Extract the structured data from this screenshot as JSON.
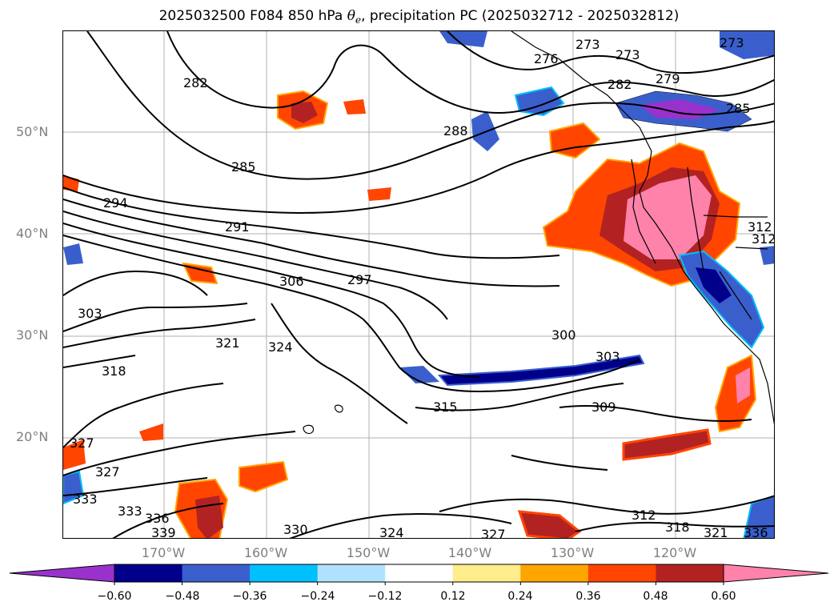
{
  "title": {
    "prefix": "2025032500 F084 850 hPa",
    "theta_symbol": "θ",
    "theta_sub": "e",
    "suffix": ", precipitation PC (2025032712 - 2025032812)"
  },
  "map": {
    "lat_labels": [
      "50°N",
      "40°N",
      "30°N",
      "20°N"
    ],
    "lon_labels": [
      "170°W",
      "160°W",
      "150°W",
      "140°W",
      "130°W",
      "120°W"
    ],
    "contour_labels": [
      "273",
      "273",
      "273",
      "276",
      "279",
      "282",
      "282",
      "285",
      "285",
      "288",
      "291",
      "294",
      "297",
      "300",
      "303",
      "303",
      "306",
      "309",
      "312",
      "312",
      "315",
      "318",
      "318",
      "321",
      "321",
      "324",
      "324",
      "327",
      "327",
      "327",
      "330",
      "333",
      "333",
      "336",
      "336",
      "339",
      "312"
    ],
    "gridlines": "on"
  },
  "colorbar": {
    "ticks": [
      "−0.60",
      "−0.48",
      "−0.36",
      "−0.24",
      "−0.12",
      "0.12",
      "0.24",
      "0.36",
      "0.48",
      "0.60"
    ],
    "colors": [
      "#9932cc",
      "#00008b",
      "#3a5fcd",
      "#00bfff",
      "#b0e2ff",
      "#ffffff",
      "#ffec8b",
      "#ffa500",
      "#ff4500",
      "#b22222",
      "#ff82ab"
    ],
    "extend": "both"
  }
}
